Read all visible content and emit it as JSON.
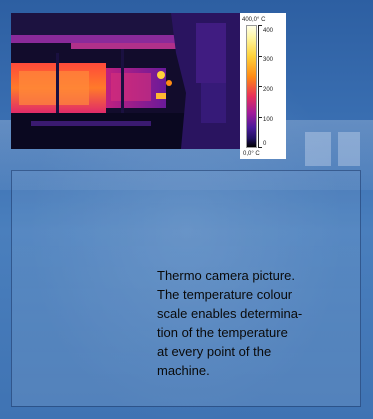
{
  "scale": {
    "top_label": "400,0° C",
    "bottom_label": "0,0° C",
    "ticks": [
      "400",
      "300",
      "200",
      "100",
      "0"
    ]
  },
  "caption_lines": [
    "Thermo camera picture.",
    "The temperature colour",
    "scale enables determina-",
    "tion of the temperature",
    "at every point of the",
    "machine."
  ],
  "colors": {
    "background": "#2f63a6",
    "caption_text": "#0a0a0a"
  }
}
